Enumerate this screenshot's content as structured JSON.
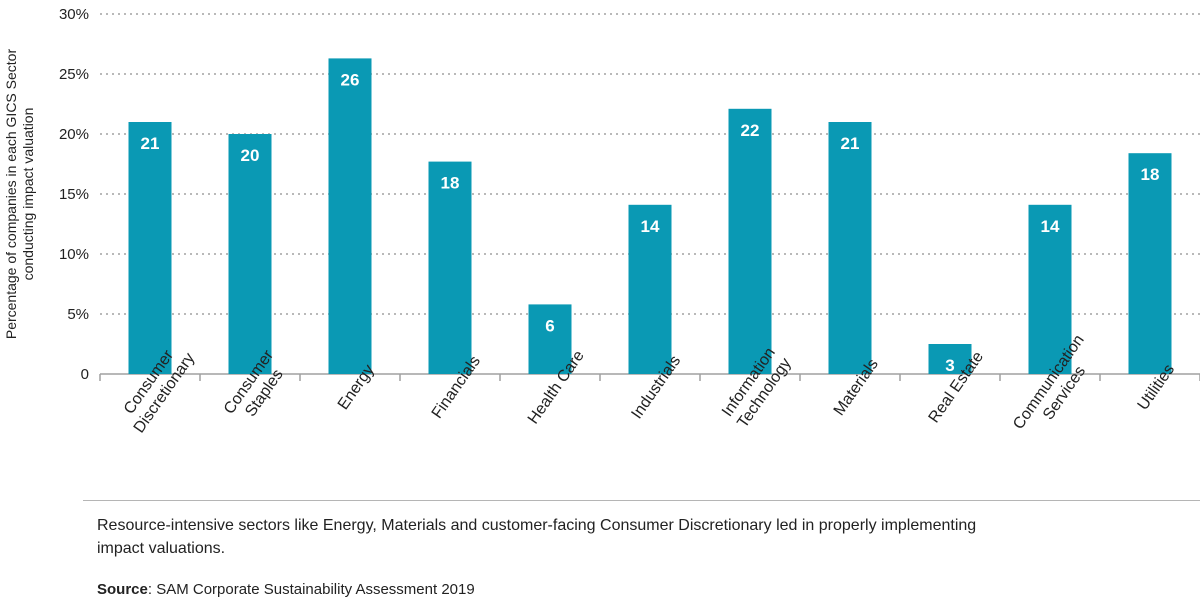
{
  "chart_data": {
    "type": "bar",
    "ylabel": "Percentage of companies in each GICS Sector conducting impact valuation",
    "ylabel_lines": [
      "Percentage of companies in each GICS Sector",
      "conducting impact valuation"
    ],
    "ylim": [
      0,
      30
    ],
    "yticks": [
      {
        "value": 0,
        "label": "0"
      },
      {
        "value": 5,
        "label": "5%"
      },
      {
        "value": 10,
        "label": "10%"
      },
      {
        "value": 15,
        "label": "15%"
      },
      {
        "value": 20,
        "label": "20%"
      },
      {
        "value": 25,
        "label": "25%"
      },
      {
        "value": 30,
        "label": "30%"
      }
    ],
    "grid": "horizontal dotted",
    "bar_color": "#0a99b4",
    "categories": [
      {
        "lines": [
          "Consumer",
          "Discretionary"
        ],
        "value": 21,
        "label": "21"
      },
      {
        "lines": [
          "Consumer",
          "Staples"
        ],
        "value": 20,
        "label": "20"
      },
      {
        "lines": [
          "Energy"
        ],
        "value": 26.3,
        "label": "26"
      },
      {
        "lines": [
          "Financials"
        ],
        "value": 17.7,
        "label": "18"
      },
      {
        "lines": [
          "Health Care"
        ],
        "value": 5.8,
        "label": "6"
      },
      {
        "lines": [
          "Industrials"
        ],
        "value": 14.1,
        "label": "14"
      },
      {
        "lines": [
          "Information",
          "Technology"
        ],
        "value": 22.1,
        "label": "22"
      },
      {
        "lines": [
          "Materials"
        ],
        "value": 21,
        "label": "21"
      },
      {
        "lines": [
          "Real Estate"
        ],
        "value": 2.5,
        "label": "3"
      },
      {
        "lines": [
          "Communication",
          "Services"
        ],
        "value": 14.1,
        "label": "14"
      },
      {
        "lines": [
          "Utilities"
        ],
        "value": 18.4,
        "label": "18"
      }
    ]
  },
  "caption": "Resource-intensive sectors like Energy, Materials and customer-facing Consumer Discretionary led in properly implementing impact valuations.",
  "source": {
    "label": "Source",
    "text": ": SAM Corporate Sustainability Assessment 2019"
  }
}
